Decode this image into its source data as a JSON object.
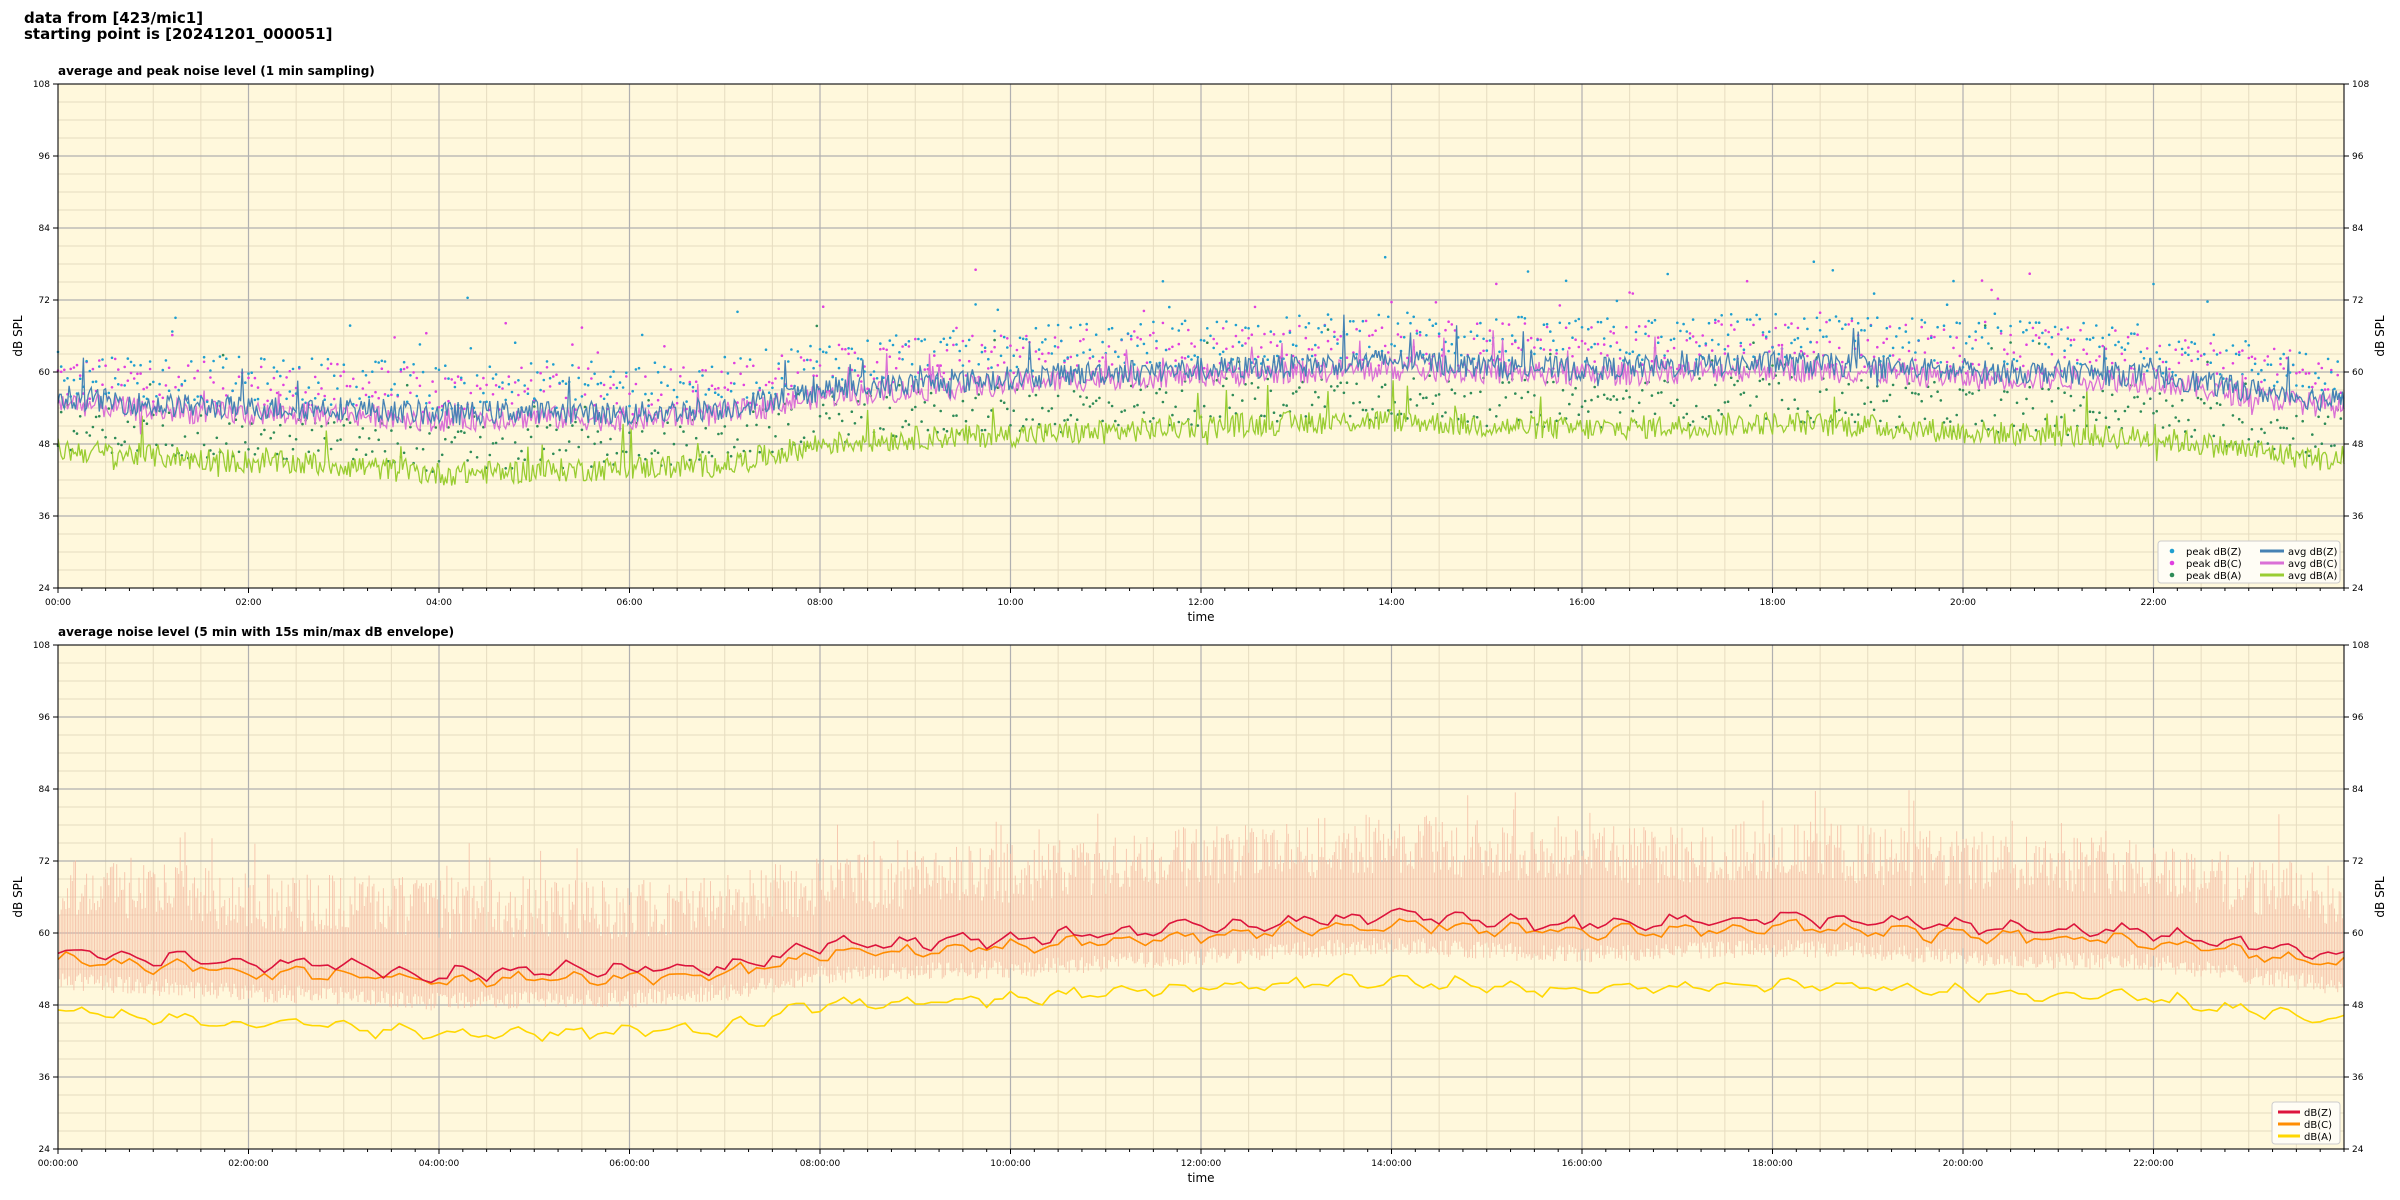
{
  "header": {
    "line1": "data from [423/mic1]",
    "line2": "starting point is [20241201_000051]"
  },
  "colors": {
    "plot_bg": "#fff8dc",
    "grid_major": "#b0b0b0",
    "grid_minor": "#e6dcc0",
    "zpeak": "#1f9fd0",
    "cpeak": "#e040e0",
    "apeak": "#2e8b57",
    "zavg": "#4682b4",
    "cavg": "#da70d6",
    "aavg": "#9acd32",
    "z5": "#dc143c",
    "c5": "#ff8c00",
    "a5": "#ffd700",
    "envelope": "#f4b8a0"
  },
  "chart_data": [
    {
      "type": "line",
      "title": "average and peak noise level (1 min sampling)",
      "xlabel": "time",
      "ylabel": "dB SPL",
      "ylim": [
        24,
        108
      ],
      "xlim_hours": [
        0,
        24
      ],
      "yticks": [
        "24",
        "36",
        "48",
        "60",
        "72",
        "84",
        "96",
        "108"
      ],
      "xticks": [
        "00:00",
        "02:00",
        "04:00",
        "06:00",
        "08:00",
        "10:00",
        "12:00",
        "14:00",
        "16:00",
        "18:00",
        "20:00",
        "22:00"
      ],
      "grid": true,
      "legend_position": "lower-right",
      "legend": [
        "peak dB(Z)",
        "peak dB(C)",
        "peak dB(A)",
        "avg dB(Z)",
        "avg dB(C)",
        "avg dB(A)"
      ],
      "x_hours": [
        0,
        1,
        2,
        3,
        4,
        5,
        6,
        7,
        8,
        9,
        10,
        11,
        12,
        13,
        14,
        15,
        16,
        17,
        18,
        19,
        20,
        21,
        22,
        23,
        24
      ],
      "series": [
        {
          "name": "avg dB(Z)",
          "values": [
            56,
            54.5,
            54,
            54,
            53,
            53.5,
            53,
            54,
            57,
            58,
            59,
            60,
            60.5,
            61,
            62,
            61,
            60.5,
            61,
            61.5,
            61,
            60,
            60,
            59.5,
            57,
            55
          ]
        },
        {
          "name": "avg dB(C)",
          "values": [
            55,
            53.5,
            53,
            53,
            52,
            52.5,
            52,
            53,
            56,
            57,
            58,
            59,
            59.5,
            60,
            60.5,
            60,
            59.5,
            60,
            60.5,
            60,
            59,
            59,
            58.5,
            56,
            54
          ]
        },
        {
          "name": "avg dB(A)",
          "values": [
            47,
            46,
            45,
            44.5,
            43,
            43.5,
            44,
            44.5,
            48,
            49,
            49.5,
            50,
            51,
            51.5,
            52,
            51,
            50.5,
            51,
            51.5,
            51,
            50,
            49.5,
            49,
            47,
            45
          ]
        },
        {
          "name": "peak dB(Z)",
          "values": [
            60,
            59,
            58.5,
            58.5,
            57.5,
            58,
            57.5,
            58.5,
            61.5,
            62.5,
            63.5,
            64.5,
            65,
            65.5,
            66.5,
            65.5,
            65,
            65.5,
            66,
            65.5,
            64.5,
            64.5,
            64,
            61.5,
            59.5
          ]
        },
        {
          "name": "peak dB(C)",
          "values": [
            59,
            58,
            57.5,
            57.5,
            56.5,
            57,
            56.5,
            57.5,
            60.5,
            61.5,
            62.5,
            63.5,
            64,
            64.5,
            65,
            64.5,
            64,
            64.5,
            65,
            64.5,
            63.5,
            63.5,
            63,
            60.5,
            58.5
          ]
        },
        {
          "name": "peak dB(A)",
          "values": [
            51,
            50,
            49,
            48.5,
            47,
            47.5,
            48,
            48.5,
            52,
            53,
            53.5,
            54,
            55,
            55.5,
            56,
            55,
            54.5,
            55,
            55.5,
            55,
            54,
            53.5,
            53,
            51,
            49
          ]
        }
      ]
    },
    {
      "type": "line",
      "title": "average noise level (5 min with 15s min/max dB envelope)",
      "xlabel": "time",
      "ylabel": "dB SPL",
      "ylim": [
        24,
        108
      ],
      "xlim_hours": [
        0,
        24
      ],
      "yticks": [
        "24",
        "36",
        "48",
        "60",
        "72",
        "84",
        "96",
        "108"
      ],
      "xticks": [
        "00:00:00",
        "02:00:00",
        "04:00:00",
        "06:00:00",
        "08:00:00",
        "10:00:00",
        "12:00:00",
        "14:00:00",
        "16:00:00",
        "18:00:00",
        "20:00:00",
        "22:00:00"
      ],
      "grid": true,
      "legend_position": "lower-right",
      "legend": [
        "dB(Z)",
        "dB(C)",
        "dB(A)"
      ],
      "x_hours": [
        0,
        1,
        2,
        3,
        4,
        5,
        6,
        7,
        8,
        9,
        10,
        11,
        12,
        13,
        14,
        15,
        16,
        17,
        18,
        19,
        20,
        21,
        22,
        23,
        24
      ],
      "series": [
        {
          "name": "dB(Z)",
          "values": [
            57,
            56,
            55,
            54.5,
            53,
            54,
            54,
            54.5,
            58,
            58.5,
            59,
            60,
            61,
            62,
            63,
            62,
            61.5,
            62,
            62.5,
            62,
            61,
            60.5,
            60,
            58,
            56
          ]
        },
        {
          "name": "dB(C)",
          "values": [
            55.5,
            54.5,
            53.5,
            53,
            52,
            52.5,
            52.5,
            53,
            56.5,
            57,
            57.5,
            58.5,
            59.5,
            60.5,
            61.5,
            60.5,
            60,
            60.5,
            61,
            60.5,
            59.5,
            59,
            58.5,
            56.5,
            54.5
          ]
        },
        {
          "name": "dB(A)",
          "values": [
            47,
            46,
            45,
            44.5,
            43,
            43.5,
            43.5,
            44,
            48,
            48.5,
            49,
            50,
            51,
            51.5,
            52,
            51,
            50.5,
            51,
            51.5,
            51,
            50,
            49.5,
            49,
            47,
            45
          ]
        }
      ],
      "envelope_max": [
        68,
        67,
        65,
        65,
        64,
        64,
        64,
        65,
        68,
        69,
        70,
        71,
        73,
        74,
        75,
        74,
        73,
        73,
        74,
        73,
        72,
        72,
        71,
        68,
        66
      ],
      "envelope_min": [
        52,
        51,
        50,
        49.5,
        48.5,
        49,
        49,
        50,
        53,
        53.5,
        54,
        55,
        56,
        57,
        58,
        57,
        56.5,
        57,
        57.5,
        57,
        56,
        55.5,
        55,
        53,
        51
      ]
    }
  ]
}
